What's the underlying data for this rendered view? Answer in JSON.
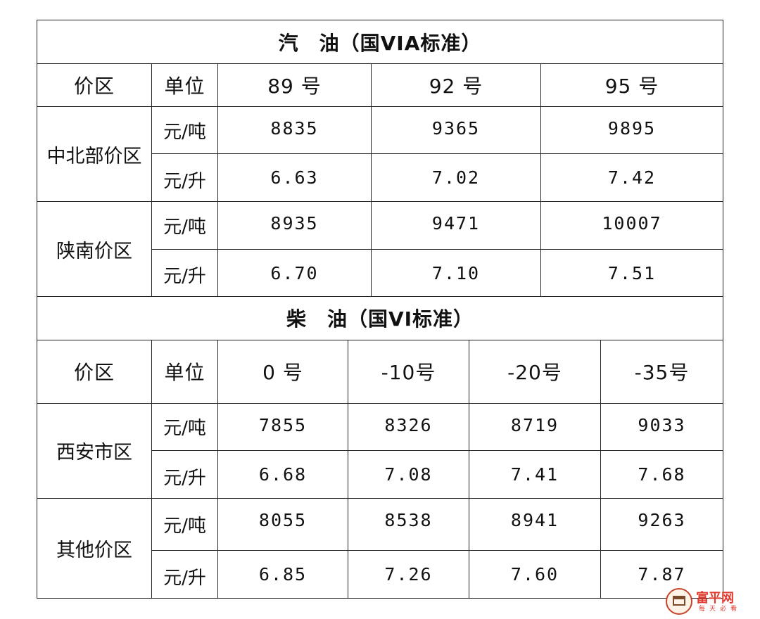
{
  "gasoline": {
    "title": "汽　油（国VIA标准）",
    "headers": {
      "region": "价区",
      "unit": "单位",
      "g89": "89 号",
      "g92": "92 号",
      "g95": "95 号"
    },
    "rows": [
      {
        "region": "中北部价区",
        "unit_ton": "元/吨",
        "ton": [
          "8835",
          "9365",
          "9895"
        ],
        "unit_liter": "元/升",
        "liter": [
          "6.63",
          "7.02",
          "7.42"
        ]
      },
      {
        "region": "陕南价区",
        "unit_ton": "元/吨",
        "ton": [
          "8935",
          "9471",
          "10007"
        ],
        "unit_liter": "元/升",
        "liter": [
          "6.70",
          "7.10",
          "7.51"
        ]
      }
    ]
  },
  "diesel": {
    "title": "柴　油（国VI标准）",
    "headers": {
      "region": "价区",
      "unit": "单位",
      "d0": "0 号",
      "dm10": "-10号",
      "dm20": "-20号",
      "dm35": "-35号"
    },
    "rows": [
      {
        "region": "西安市区",
        "unit_ton": "元/吨",
        "ton": [
          "7855",
          "8326",
          "8719",
          "9033"
        ],
        "unit_liter": "元/升",
        "liter": [
          "6.68",
          "7.08",
          "7.41",
          "7.68"
        ]
      },
      {
        "region": "其他价区",
        "unit_ton": "元/吨",
        "ton": [
          "8055",
          "8538",
          "8941",
          "9263"
        ],
        "unit_liter": "元/升",
        "liter": [
          "6.85",
          "7.26",
          "7.60",
          "7.87"
        ]
      }
    ]
  },
  "watermark": {
    "name": "富平网",
    "tagline": "每天必看"
  }
}
